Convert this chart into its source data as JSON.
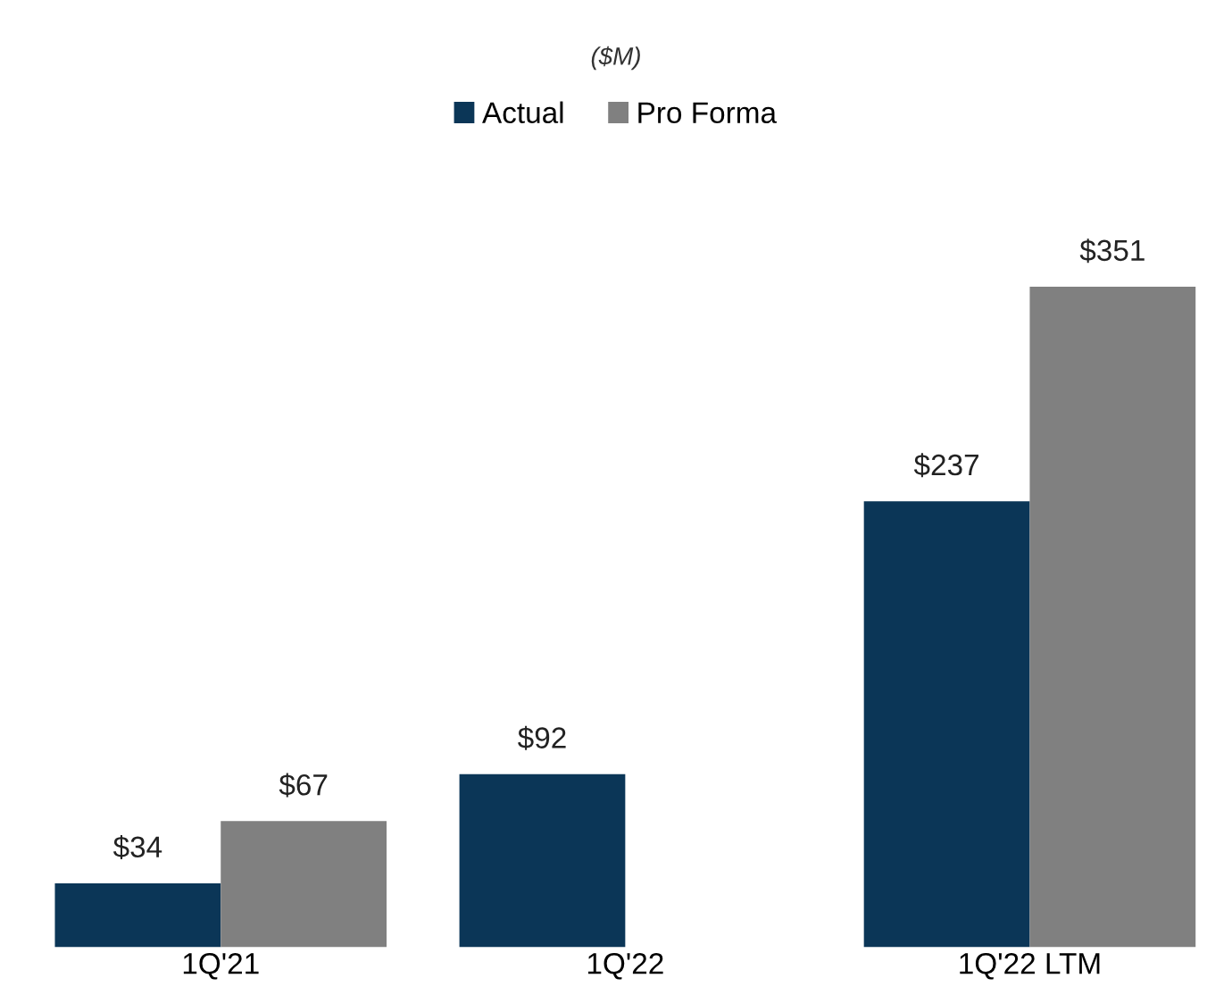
{
  "chart_data": {
    "type": "bar",
    "subtitle": "($M)",
    "categories": [
      "1Q'21",
      "1Q'22",
      "1Q'22 LTM"
    ],
    "series": [
      {
        "name": "Actual",
        "color": "#0b3657",
        "values": [
          34,
          92,
          237
        ],
        "value_labels": [
          "$34",
          "$92",
          "$237"
        ]
      },
      {
        "name": "Pro Forma",
        "color": "#808080",
        "values": [
          67,
          null,
          351
        ],
        "value_labels": [
          "$67",
          null,
          "$351"
        ]
      }
    ],
    "legend": "top",
    "grid": false
  }
}
